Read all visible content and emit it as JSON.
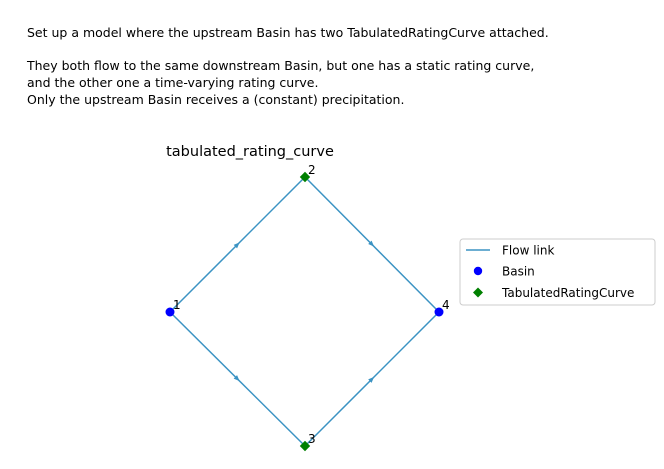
{
  "description": {
    "line1": "Set up a model where the upstream Basin has two TabulatedRatingCurve attached.",
    "line2": "They both flow to the same downstream Basin, but one has a static rating curve,\nand the other one a time-varying rating curve.\nOnly the upstream Basin receives a (constant) precipitation."
  },
  "diagram": {
    "title": "tabulated_rating_curve",
    "nodes": [
      {
        "id": "1",
        "type": "Basin"
      },
      {
        "id": "2",
        "type": "TabulatedRatingCurve"
      },
      {
        "id": "3",
        "type": "TabulatedRatingCurve"
      },
      {
        "id": "4",
        "type": "Basin"
      }
    ],
    "links": [
      {
        "from": "1",
        "to": "2",
        "type": "Flow link"
      },
      {
        "from": "2",
        "to": "4",
        "type": "Flow link"
      },
      {
        "from": "1",
        "to": "3",
        "type": "Flow link"
      },
      {
        "from": "3",
        "to": "4",
        "type": "Flow link"
      }
    ],
    "legend": {
      "placement": "right",
      "items": [
        {
          "label": "Flow link",
          "marker": "line",
          "color": "#3b93c3"
        },
        {
          "label": "Basin",
          "marker": "circle",
          "color": "#0000ff"
        },
        {
          "label": "TabulatedRatingCurve",
          "marker": "diamond",
          "color": "#008000"
        }
      ]
    },
    "colors": {
      "flow_link": "#3b93c3",
      "basin": "#0000ff",
      "tabulated_rating_curve": "#008000"
    }
  }
}
